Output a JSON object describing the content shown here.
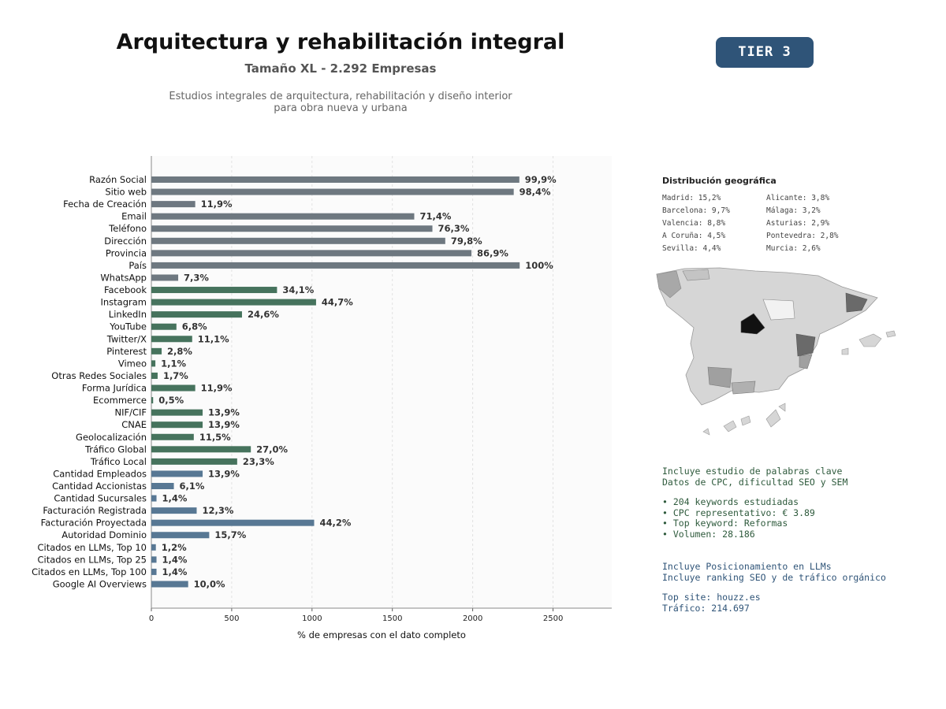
{
  "header": {
    "title": "Arquitectura y rehabilitación integral",
    "subtitle": "Tamaño XL - 2.292 Empresas",
    "description_line1": "Estudios integrales de arquitectura, rehabilitación y diseño interior",
    "description_line2": "para obra nueva y urbana",
    "tier": "TIER 3"
  },
  "colors": {
    "group_basic": "#6e7880",
    "group_social": "#46735d",
    "group_business": "#587894",
    "tier_bg": "#2f5478"
  },
  "chart_data": {
    "type": "bar",
    "orientation": "horizontal",
    "xlabel": "% de empresas con el dato completo",
    "xlim": [
      0,
      2865
    ],
    "xticks": [
      0,
      500,
      1000,
      1500,
      2000,
      2500
    ],
    "grid": "vertical dashed",
    "categories": [
      "Razón Social",
      "Sitio web",
      "Fecha de Creación",
      "Email",
      "Teléfono",
      "Dirección",
      "Provincia",
      "País",
      "WhatsApp",
      "Facebook",
      "Instagram",
      "LinkedIn",
      "YouTube",
      "Twitter/X",
      "Pinterest",
      "Vimeo",
      "Otras Redes Sociales",
      "Forma Jurídica",
      "Ecommerce",
      "NIF/CIF",
      "CNAE",
      "Geolocalización",
      "Tráfico Global",
      "Tráfico Local",
      "Cantidad Empleados",
      "Cantidad Accionistas",
      "Cantidad Sucursales",
      "Facturación Registrada",
      "Facturación Proyectada",
      "Autoridad Dominio",
      "Citados en LLMs, Top 10",
      "Citados en LLMs, Top 25",
      "Citados en LLMs, Top 100",
      "Google AI Overviews"
    ],
    "values": [
      2290,
      2255,
      273,
      1636,
      1749,
      1829,
      1992,
      2292,
      167,
      782,
      1025,
      564,
      156,
      254,
      64,
      25,
      39,
      273,
      11,
      319,
      319,
      264,
      619,
      534,
      319,
      140,
      32,
      282,
      1013,
      360,
      28,
      32,
      32,
      229
    ],
    "labels": [
      "99,9%",
      "98,4%",
      "11,9%",
      "71,4%",
      "76,3%",
      "79,8%",
      "86,9%",
      "100%",
      "7,3%",
      "34,1%",
      "44,7%",
      "24,6%",
      "6,8%",
      "11,1%",
      "2,8%",
      "1,1%",
      "1,7%",
      "11,9%",
      "0,5%",
      "13,9%",
      "13,9%",
      "11,5%",
      "27,0%",
      "23,3%",
      "13,9%",
      "6,1%",
      "1,4%",
      "12,3%",
      "44,2%",
      "15,7%",
      "1,2%",
      "1,4%",
      "1,4%",
      "10,0%"
    ],
    "groups": [
      "basic",
      "basic",
      "basic",
      "basic",
      "basic",
      "basic",
      "basic",
      "basic",
      "basic",
      "social",
      "social",
      "social",
      "social",
      "social",
      "social",
      "social",
      "social",
      "social",
      "social",
      "social",
      "social",
      "social",
      "social",
      "social",
      "business",
      "business",
      "business",
      "business",
      "business",
      "business",
      "business",
      "business",
      "business",
      "business"
    ]
  },
  "geo": {
    "title": "Distribución geográfica",
    "items": [
      "Madrid: 15,2%",
      "Alicante: 3,8%",
      "Barcelona: 9,7%",
      "Málaga: 3,2%",
      "Valencia: 8,8%",
      "Asturias: 2,9%",
      "A Coruña: 4,5%",
      "Pontevedra: 2,8%",
      "Sevilla: 4,4%",
      "Murcia: 2,6%"
    ]
  },
  "keywords": {
    "line1": "Incluye estudio de palabras clave",
    "line2": "Datos de CPC, dificultad SEO y SEM",
    "bullet1": "• 204 keywords estudiadas",
    "bullet2": "• CPC representativo: € 3.89",
    "bullet3": "• Top keyword: Reformas",
    "bullet4": "• Volumen: 28.186"
  },
  "llm": {
    "line1": "Incluye Posicionamiento en LLMs",
    "line2": "Incluye ranking SEO y de tráfico orgánico",
    "top_site": "Top site: houzz.es",
    "traffic": "Tráfico: 214.697"
  }
}
